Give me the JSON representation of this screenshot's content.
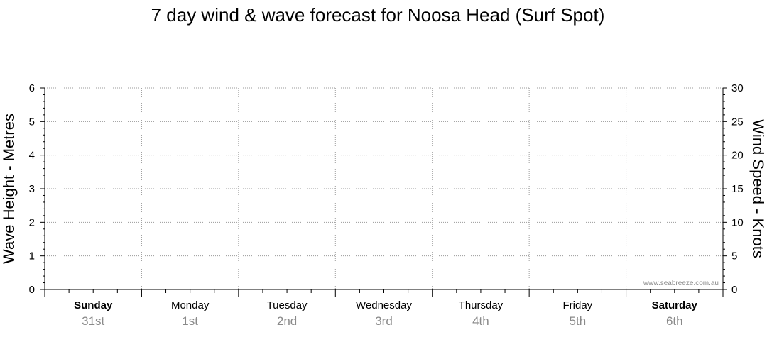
{
  "chart_data": {
    "type": "line",
    "title": "7 day wind & wave forecast for Noosa Head (Surf Spot)",
    "y_left": {
      "label": "Wave Height - Metres",
      "range": [
        0,
        6
      ],
      "ticks": [
        "0",
        "1",
        "2",
        "3",
        "4",
        "5",
        "6"
      ]
    },
    "y_right": {
      "label": "Wind Speed - Knots",
      "range": [
        0,
        30
      ],
      "ticks": [
        "0",
        "5",
        "10",
        "15",
        "20",
        "25",
        "30"
      ]
    },
    "days": [
      {
        "name": "Sunday",
        "date": "31st",
        "bold": true
      },
      {
        "name": "Monday",
        "date": "1st",
        "bold": false
      },
      {
        "name": "Tuesday",
        "date": "2nd",
        "bold": false
      },
      {
        "name": "Wednesday",
        "date": "3rd",
        "bold": false
      },
      {
        "name": "Thursday",
        "date": "4th",
        "bold": false
      },
      {
        "name": "Friday",
        "date": "5th",
        "bold": false
      },
      {
        "name": "Saturday",
        "date": "6th",
        "bold": true
      }
    ],
    "series": [],
    "grid": true,
    "watermark": "www.seabreeze.com.au"
  }
}
